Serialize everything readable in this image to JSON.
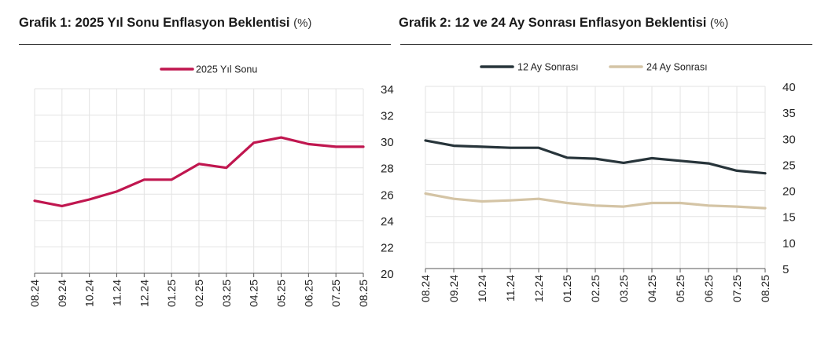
{
  "charts": [
    {
      "title": "Grafik 1: 2025 Yıl Sonu Enflasyon Beklentisi",
      "unit": "(%)"
    },
    {
      "title": "Grafik 2: 12 ve 24 Ay Sonrası Enflasyon Beklentisi",
      "unit": "(%)"
    }
  ],
  "chart_data": [
    {
      "type": "line",
      "title": "Grafik 1: 2025 Yıl Sonu Enflasyon Beklentisi",
      "unit": "(%)",
      "categories": [
        "08.24",
        "09.24",
        "10.24",
        "11.24",
        "12.24",
        "01.25",
        "02.25",
        "03.25",
        "04.25",
        "05.25",
        "06.25",
        "07.25",
        "08.25"
      ],
      "series": [
        {
          "name": "2025 Yıl Sonu",
          "color": "#c0164f",
          "values": [
            25.5,
            25.1,
            25.6,
            26.2,
            27.1,
            27.1,
            28.3,
            28.0,
            29.9,
            30.3,
            29.8,
            29.6,
            29.6
          ]
        }
      ],
      "ylim": [
        20,
        34
      ],
      "yticks": [
        20,
        22,
        24,
        26,
        28,
        30,
        32,
        34
      ],
      "y_axis_side": "right",
      "grid": true,
      "legend": "top-center"
    },
    {
      "type": "line",
      "title": "Grafik 2: 12 ve 24 Ay Sonrası Enflasyon Beklentisi",
      "unit": "(%)",
      "categories": [
        "08.24",
        "09.24",
        "10.24",
        "11.24",
        "12.24",
        "01.25",
        "02.25",
        "03.25",
        "04.25",
        "05.25",
        "06.25",
        "07.25",
        "08.25"
      ],
      "series": [
        {
          "name": "12 Ay Sonrası",
          "color": "#27343a",
          "values": [
            29.6,
            28.6,
            28.4,
            28.2,
            28.2,
            26.3,
            26.1,
            25.3,
            26.2,
            25.7,
            25.2,
            23.8,
            23.3
          ]
        },
        {
          "name": "24 Ay Sonrası",
          "color": "#d4c4a5",
          "values": [
            19.4,
            18.4,
            17.9,
            18.1,
            18.4,
            17.6,
            17.1,
            16.9,
            17.6,
            17.6,
            17.1,
            16.9,
            16.6
          ]
        }
      ],
      "ylim": [
        5,
        40
      ],
      "yticks": [
        5,
        10,
        15,
        20,
        25,
        30,
        35,
        40
      ],
      "y_axis_side": "right",
      "grid": true,
      "legend": "top-center"
    }
  ]
}
